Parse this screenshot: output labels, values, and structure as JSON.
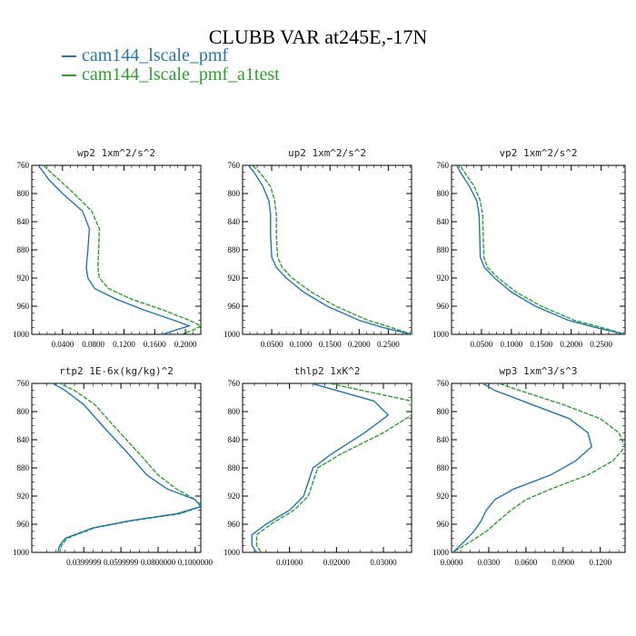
{
  "figure": {
    "title": "CLUBB VAR at245E,-17N",
    "legend": [
      {
        "label": "cam144_lscale_pmf",
        "color": "#1f77b4"
      },
      {
        "label": "cam144_lscale_pmf_a1test",
        "color": "#2ca02c"
      }
    ]
  },
  "chart_data": [
    {
      "type": "line",
      "title": "wp2  1xm^2/s^2",
      "xlim": [
        0.0,
        0.22
      ],
      "ylim": [
        760,
        1000
      ],
      "yticks": [
        760,
        800,
        840,
        880,
        920,
        960,
        1000
      ],
      "xticks": [
        0.04,
        0.08,
        0.12,
        0.16,
        0.2
      ],
      "xtick_labels": [
        "0.0400",
        "0.0800",
        "0.1200",
        "0.1600",
        "0.2000"
      ],
      "y": [
        755,
        765,
        780,
        800,
        825,
        850,
        880,
        905,
        920,
        935,
        950,
        965,
        980,
        988,
        993,
        1000
      ],
      "series": [
        {
          "name": "cam144_lscale_pmf",
          "color": "#1f77b4",
          "values": [
            0.005,
            0.012,
            0.022,
            0.04,
            0.066,
            0.075,
            0.073,
            0.071,
            0.073,
            0.082,
            0.11,
            0.145,
            0.185,
            0.205,
            0.19,
            0.17
          ]
        },
        {
          "name": "cam144_lscale_pmf_a1test",
          "color": "#2ca02c",
          "values": [
            0.01,
            0.02,
            0.035,
            0.055,
            0.078,
            0.088,
            0.087,
            0.086,
            0.088,
            0.1,
            0.13,
            0.17,
            0.205,
            0.22,
            0.212,
            0.195
          ]
        }
      ]
    },
    {
      "type": "line",
      "title": "up2  1xm^2/s^2",
      "xlim": [
        0.0,
        0.29
      ],
      "ylim": [
        760,
        1000
      ],
      "yticks": [
        760,
        800,
        840,
        880,
        920,
        960,
        1000
      ],
      "xticks": [
        0.05,
        0.1,
        0.15,
        0.2,
        0.25
      ],
      "xtick_labels": [
        "0.0500",
        "0.1000",
        "0.1500",
        "0.2000",
        "0.2500"
      ],
      "y": [
        755,
        770,
        790,
        810,
        830,
        860,
        890,
        905,
        920,
        940,
        960,
        980,
        990,
        1000
      ],
      "series": [
        {
          "name": "cam144_lscale_pmf",
          "color": "#1f77b4",
          "values": [
            0.005,
            0.02,
            0.035,
            0.045,
            0.048,
            0.048,
            0.05,
            0.058,
            0.075,
            0.105,
            0.145,
            0.2,
            0.24,
            0.29
          ]
        },
        {
          "name": "cam144_lscale_pmf_a1test",
          "color": "#2ca02c",
          "values": [
            0.01,
            0.03,
            0.048,
            0.055,
            0.058,
            0.058,
            0.06,
            0.068,
            0.085,
            0.118,
            0.16,
            0.215,
            0.255,
            0.29
          ]
        }
      ]
    },
    {
      "type": "line",
      "title": "vp2  1xm^2/s^2",
      "xlim": [
        0.0,
        0.29
      ],
      "ylim": [
        760,
        1000
      ],
      "yticks": [
        760,
        800,
        840,
        880,
        920,
        960,
        1000
      ],
      "xticks": [
        0.05,
        0.1,
        0.15,
        0.2,
        0.25
      ],
      "xtick_labels": [
        "0.0500",
        "0.1000",
        "0.1500",
        "0.2000",
        "0.2500"
      ],
      "y": [
        755,
        770,
        790,
        810,
        830,
        860,
        890,
        905,
        920,
        940,
        960,
        980,
        990,
        1000
      ],
      "series": [
        {
          "name": "cam144_lscale_pmf",
          "color": "#1f77b4",
          "values": [
            0.005,
            0.015,
            0.03,
            0.042,
            0.046,
            0.047,
            0.048,
            0.055,
            0.072,
            0.1,
            0.14,
            0.195,
            0.24,
            0.29
          ]
        },
        {
          "name": "cam144_lscale_pmf_a1test",
          "color": "#2ca02c",
          "values": [
            0.01,
            0.022,
            0.038,
            0.048,
            0.052,
            0.053,
            0.054,
            0.06,
            0.078,
            0.108,
            0.15,
            0.205,
            0.25,
            0.29
          ]
        }
      ]
    },
    {
      "type": "line",
      "title": "rtp2  1E-6x(kg/kg)^2",
      "xlim": [
        0.012,
        0.103
      ],
      "ylim": [
        760,
        1000
      ],
      "yticks": [
        760,
        800,
        840,
        880,
        920,
        960,
        1000
      ],
      "xticks": [
        0.04,
        0.06,
        0.08,
        0.1
      ],
      "xtick_labels": [
        "0.0399999",
        "0.0599999",
        "0.0800000",
        "0.1000000"
      ],
      "y": [
        755,
        770,
        790,
        820,
        860,
        890,
        910,
        925,
        935,
        945,
        955,
        965,
        980,
        990,
        1000
      ],
      "series": [
        {
          "name": "cam144_lscale_pmf",
          "color": "#1f77b4",
          "values": [
            0.02,
            0.03,
            0.04,
            0.05,
            0.064,
            0.074,
            0.085,
            0.1,
            0.103,
            0.09,
            0.065,
            0.045,
            0.03,
            0.027,
            0.026
          ]
        },
        {
          "name": "cam144_lscale_pmf_a1test",
          "color": "#2ca02c",
          "values": [
            0.023,
            0.035,
            0.046,
            0.056,
            0.07,
            0.08,
            0.09,
            0.1,
            0.103,
            0.092,
            0.066,
            0.046,
            0.031,
            0.028,
            0.027
          ]
        }
      ]
    },
    {
      "type": "line",
      "title": "thlp2  1xK^2",
      "xlim": [
        0.0,
        0.036
      ],
      "ylim": [
        760,
        1000
      ],
      "yticks": [
        760,
        800,
        840,
        880,
        920,
        960,
        1000
      ],
      "xticks": [
        0.01,
        0.02,
        0.03
      ],
      "xtick_labels": [
        "0.01000",
        "0.02000",
        "0.03000"
      ],
      "y": [
        755,
        785,
        805,
        830,
        860,
        880,
        900,
        920,
        940,
        960,
        975,
        990,
        1000
      ],
      "series": [
        {
          "name": "cam144_lscale_pmf",
          "color": "#1f77b4",
          "values": [
            0.012,
            0.028,
            0.031,
            0.026,
            0.019,
            0.015,
            0.014,
            0.013,
            0.01,
            0.005,
            0.002,
            0.002,
            0.003
          ]
        },
        {
          "name": "cam144_lscale_pmf_a1test",
          "color": "#2ca02c",
          "values": [
            0.015,
            0.036,
            0.036,
            0.03,
            0.021,
            0.016,
            0.015,
            0.014,
            0.011,
            0.006,
            0.003,
            0.003,
            0.004
          ]
        }
      ]
    },
    {
      "type": "line",
      "title": "wp3  1xm^3/s^3",
      "xlim": [
        0.0,
        0.14
      ],
      "ylim": [
        760,
        1000
      ],
      "yticks": [
        760,
        800,
        840,
        880,
        920,
        960,
        1000
      ],
      "xticks": [
        0.0,
        0.03,
        0.06,
        0.09,
        0.12
      ],
      "xtick_labels": [
        "0.0000",
        "0.0300",
        "0.0600",
        "0.0900",
        "0.1200"
      ],
      "y": [
        755,
        770,
        790,
        810,
        830,
        850,
        870,
        890,
        910,
        925,
        940,
        955,
        970,
        985,
        1000
      ],
      "series": [
        {
          "name": "cam144_lscale_pmf",
          "color": "#1f77b4",
          "values": [
            0.02,
            0.035,
            0.065,
            0.095,
            0.11,
            0.113,
            0.1,
            0.08,
            0.05,
            0.035,
            0.028,
            0.024,
            0.018,
            0.01,
            0.001
          ]
        },
        {
          "name": "cam144_lscale_pmf_a1test",
          "color": "#2ca02c",
          "values": [
            0.03,
            0.055,
            0.09,
            0.12,
            0.135,
            0.14,
            0.13,
            0.11,
            0.08,
            0.06,
            0.048,
            0.038,
            0.028,
            0.015,
            0.001
          ]
        }
      ]
    }
  ]
}
